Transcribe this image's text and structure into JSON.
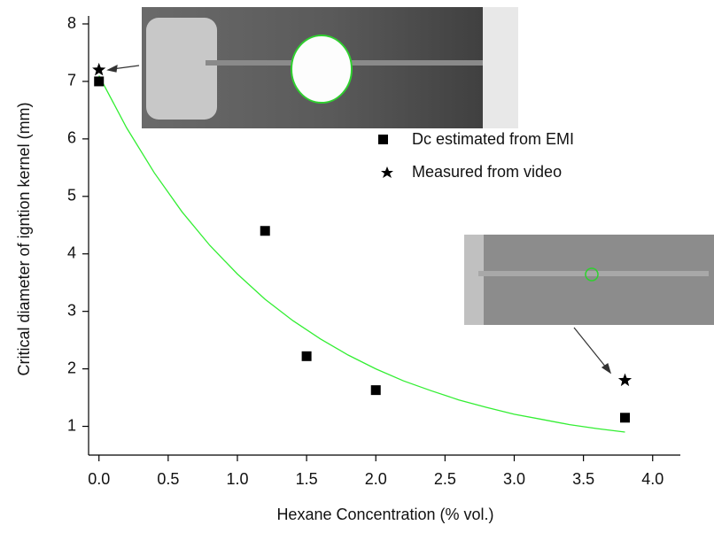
{
  "chart_data": {
    "type": "scatter",
    "x_label": "Hexane Concentration (% vol.)",
    "y_label": "Critical diameter of igntion kernel (mm)",
    "xlim": [
      -0.075,
      4.2
    ],
    "ylim": [
      0.5,
      8
    ],
    "xticks": [
      {
        "value": 0,
        "label": "0.0"
      },
      0.5,
      {
        "value": 1,
        "label": "1.0"
      },
      1.5,
      {
        "value": 2,
        "label": "2.0"
      },
      2.5,
      {
        "value": 3,
        "label": "3.0"
      },
      3.5,
      {
        "value": 4,
        "label": "4.0"
      }
    ],
    "yticks": [
      1,
      2,
      3,
      4,
      5,
      6,
      7,
      8
    ],
    "series": [
      {
        "name": "Dc estimated from EMI",
        "marker": "square",
        "color": "#000000",
        "x": [
          0,
          1.2,
          1.5,
          2.0,
          3.8
        ],
        "values": [
          7.0,
          4.4,
          2.22,
          1.63,
          1.15
        ]
      },
      {
        "name": "Measured from video",
        "marker": "star",
        "color": "#000000",
        "x": [
          0,
          3.8
        ],
        "values": [
          7.2,
          1.8
        ]
      }
    ],
    "fit": {
      "color": "#33ee33",
      "x": [
        0,
        0.2,
        0.4,
        0.6,
        0.8,
        1.0,
        1.2,
        1.4,
        1.6,
        1.8,
        2.0,
        2.2,
        2.4,
        2.6,
        2.8,
        3.0,
        3.2,
        3.4,
        3.6,
        3.8
      ],
      "values": [
        7.1,
        6.19,
        5.41,
        4.73,
        4.15,
        3.65,
        3.21,
        2.84,
        2.52,
        2.24,
        2.0,
        1.79,
        1.62,
        1.46,
        1.33,
        1.21,
        1.12,
        1.03,
        0.96,
        0.9
      ]
    }
  }
}
